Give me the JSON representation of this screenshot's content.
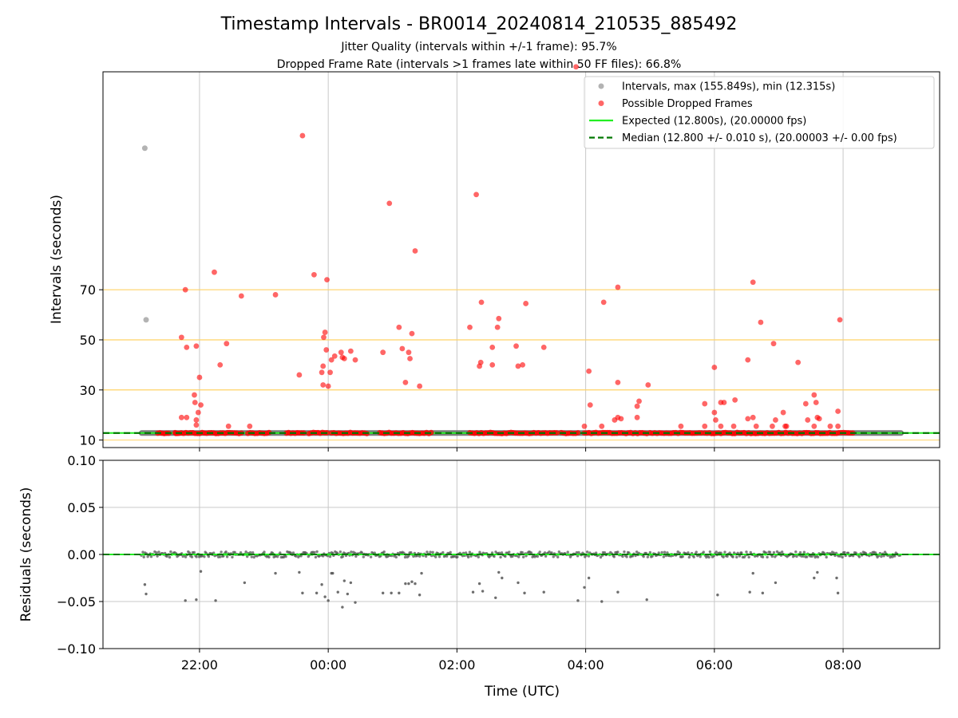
{
  "title": "Timestamp Intervals - BR0014_20240814_210535_885492",
  "subtitle_lines": [
    "Jitter Quality (intervals within +/-1 frame): 95.7%",
    "Dropped Frame Rate (intervals >1 frames late within 50 FF files): 66.8%"
  ],
  "colors": {
    "interval_points": "#808080",
    "dropped": "#ff0000",
    "expected": "#22ee22",
    "median": "#007700",
    "threshold": "#ffd266",
    "grid": "#c8c8c8",
    "residual_points": "#555555"
  },
  "chart_data": [
    {
      "type": "scatter",
      "id": "intervals",
      "ylabel": "Intervals (seconds)",
      "xlabel": "",
      "x_ticks": [
        "22:00",
        "00:00",
        "02:00",
        "04:00",
        "06:00",
        "08:00"
      ],
      "x_tick_hours": [
        22,
        24,
        26,
        28,
        30,
        32
      ],
      "xlim_hours": [
        20.5,
        33.5
      ],
      "ylim": [
        7,
        157
      ],
      "y_ticks": [
        10,
        30,
        50,
        70
      ],
      "threshold_lines": [
        30,
        50,
        70
      ],
      "expected_value": 12.8,
      "median_value": 12.8,
      "data_span_hours": [
        21.1,
        32.9
      ],
      "legend": {
        "placement": "top-right",
        "entries": [
          {
            "key": "intervals",
            "label": "Intervals, max (155.849s), min (12.315s)"
          },
          {
            "key": "dropped",
            "label": "Possible Dropped Frames"
          },
          {
            "key": "expected",
            "label": "Expected (12.800s), (20.00000 fps)"
          },
          {
            "key": "median",
            "label": "Median (12.800 +/- 0.010 s), (20.00003 +/- 0.00 fps)"
          }
        ]
      },
      "series": [
        {
          "name": "Intervals, max (155.849s), min (12.315s)",
          "points": [
            [
              21.15,
              126.5
            ],
            [
              21.17,
              58
            ]
          ]
        },
        {
          "name": "Possible Dropped Frames",
          "points": [
            [
              21.78,
              70
            ],
            [
              21.72,
              51
            ],
            [
              21.8,
              47
            ],
            [
              21.72,
              19
            ],
            [
              21.8,
              19
            ],
            [
              21.92,
              28
            ],
            [
              21.93,
              25
            ],
            [
              21.95,
              47.5
            ],
            [
              21.95,
              16
            ],
            [
              21.95,
              18
            ],
            [
              21.98,
              21
            ],
            [
              22.0,
              35
            ],
            [
              22.02,
              24
            ],
            [
              22.23,
              77
            ],
            [
              22.32,
              40
            ],
            [
              22.42,
              48.5
            ],
            [
              22.45,
              15.5
            ],
            [
              22.65,
              67.5
            ],
            [
              22.78,
              15.5
            ],
            [
              23.18,
              68
            ],
            [
              23.55,
              36
            ],
            [
              23.6,
              131.5
            ],
            [
              23.78,
              76
            ],
            [
              23.92,
              32
            ],
            [
              23.9,
              37
            ],
            [
              23.92,
              39.5
            ],
            [
              23.93,
              51
            ],
            [
              23.95,
              53
            ],
            [
              23.97,
              46
            ],
            [
              23.98,
              74
            ],
            [
              24.0,
              31.5
            ],
            [
              24.03,
              37
            ],
            [
              24.05,
              42
            ],
            [
              24.1,
              43.5
            ],
            [
              24.2,
              45
            ],
            [
              24.22,
              43
            ],
            [
              24.25,
              42.5
            ],
            [
              24.35,
              45.5
            ],
            [
              24.42,
              42
            ],
            [
              24.85,
              45
            ],
            [
              24.95,
              104.5
            ],
            [
              25.1,
              55
            ],
            [
              25.15,
              46.5
            ],
            [
              25.2,
              33
            ],
            [
              25.25,
              45
            ],
            [
              25.27,
              42.5
            ],
            [
              25.3,
              52.5
            ],
            [
              25.35,
              85.5
            ],
            [
              25.42,
              31.5
            ],
            [
              26.2,
              55
            ],
            [
              26.3,
              108
            ],
            [
              26.35,
              39.5
            ],
            [
              26.37,
              41
            ],
            [
              26.38,
              65
            ],
            [
              26.55,
              40
            ],
            [
              26.55,
              47
            ],
            [
              26.63,
              55
            ],
            [
              26.65,
              58.5
            ],
            [
              26.92,
              47.5
            ],
            [
              26.95,
              39.5
            ],
            [
              27.02,
              40
            ],
            [
              27.07,
              64.5
            ],
            [
              27.35,
              47
            ],
            [
              27.85,
              159
            ],
            [
              27.98,
              15.5
            ],
            [
              28.05,
              37.5
            ],
            [
              28.07,
              24
            ],
            [
              28.28,
              65
            ],
            [
              28.25,
              15.5
            ],
            [
              28.45,
              18
            ],
            [
              28.5,
              19
            ],
            [
              28.55,
              18.5
            ],
            [
              28.5,
              33
            ],
            [
              28.5,
              71
            ],
            [
              28.8,
              19
            ],
            [
              28.8,
              23.5
            ],
            [
              28.83,
              25.5
            ],
            [
              28.97,
              32
            ],
            [
              29.48,
              15.5
            ],
            [
              29.85,
              24.5
            ],
            [
              29.85,
              15.5
            ],
            [
              30.0,
              39
            ],
            [
              30.0,
              21
            ],
            [
              30.02,
              18
            ],
            [
              30.1,
              25
            ],
            [
              30.1,
              15.5
            ],
            [
              30.15,
              25
            ],
            [
              30.3,
              15.5
            ],
            [
              30.32,
              26
            ],
            [
              30.52,
              42
            ],
            [
              30.52,
              18.5
            ],
            [
              30.6,
              73
            ],
            [
              30.6,
              19
            ],
            [
              30.65,
              15.5
            ],
            [
              30.72,
              57
            ],
            [
              30.95,
              18
            ],
            [
              30.9,
              15.5
            ],
            [
              30.92,
              48.5
            ],
            [
              31.1,
              15.5
            ],
            [
              31.07,
              21
            ],
            [
              31.12,
              15.5
            ],
            [
              31.3,
              41
            ],
            [
              31.42,
              24.5
            ],
            [
              31.45,
              18
            ],
            [
              31.55,
              28
            ],
            [
              31.58,
              25
            ],
            [
              31.55,
              15.5
            ],
            [
              31.6,
              19
            ],
            [
              31.63,
              18.5
            ],
            [
              31.8,
              15.5
            ],
            [
              31.92,
              21.5
            ],
            [
              31.92,
              15.5
            ],
            [
              31.95,
              58
            ]
          ],
          "dense_ranges_hours": [
            [
              21.35,
              21.52
            ],
            [
              21.62,
              21.66
            ],
            [
              21.68,
              22.65
            ],
            [
              22.75,
              23.08
            ],
            [
              23.35,
              23.62
            ],
            [
              23.7,
              23.98
            ],
            [
              24.05,
              24.6
            ],
            [
              24.8,
              25.6
            ],
            [
              26.2,
              27.55
            ],
            [
              27.62,
              27.88
            ],
            [
              27.98,
              28.95
            ],
            [
              29.0,
              29.8
            ],
            [
              29.85,
              32.15
            ]
          ]
        }
      ]
    },
    {
      "type": "scatter",
      "id": "residuals",
      "ylabel": "Residuals (seconds)",
      "xlabel": "Time (UTC)",
      "x_ticks": [
        "22:00",
        "00:00",
        "02:00",
        "04:00",
        "06:00",
        "08:00"
      ],
      "x_tick_hours": [
        22,
        24,
        26,
        28,
        30,
        32
      ],
      "xlim_hours": [
        20.5,
        33.5
      ],
      "ylim": [
        -0.1,
        0.1
      ],
      "y_ticks": [
        "0.10",
        "0.05",
        "0.00",
        "−0.05",
        "−0.10"
      ],
      "y_tick_values": [
        0.1,
        0.05,
        0.0,
        -0.05,
        -0.1
      ],
      "series": [
        {
          "name": "Residuals",
          "points": [
            [
              21.15,
              -0.032
            ],
            [
              21.17,
              -0.042
            ],
            [
              21.78,
              -0.049
            ],
            [
              21.95,
              -0.048
            ],
            [
              22.02,
              -0.018
            ],
            [
              22.25,
              -0.049
            ],
            [
              22.7,
              -0.03
            ],
            [
              23.18,
              -0.02
            ],
            [
              23.55,
              -0.019
            ],
            [
              23.6,
              -0.041
            ],
            [
              23.82,
              -0.041
            ],
            [
              23.9,
              -0.032
            ],
            [
              23.95,
              -0.045
            ],
            [
              24.0,
              -0.049
            ],
            [
              24.05,
              -0.02
            ],
            [
              24.07,
              -0.02
            ],
            [
              24.15,
              -0.04
            ],
            [
              24.22,
              -0.056
            ],
            [
              24.25,
              -0.028
            ],
            [
              24.3,
              -0.042
            ],
            [
              24.35,
              -0.03
            ],
            [
              24.42,
              -0.051
            ],
            [
              24.85,
              -0.041
            ],
            [
              24.98,
              -0.041
            ],
            [
              25.1,
              -0.041
            ],
            [
              25.2,
              -0.031
            ],
            [
              25.25,
              -0.031
            ],
            [
              25.3,
              -0.029
            ],
            [
              25.35,
              -0.031
            ],
            [
              25.45,
              -0.02
            ],
            [
              25.42,
              -0.043
            ],
            [
              26.25,
              -0.04
            ],
            [
              26.35,
              -0.031
            ],
            [
              26.4,
              -0.039
            ],
            [
              26.6,
              -0.046
            ],
            [
              26.65,
              -0.019
            ],
            [
              26.7,
              -0.025
            ],
            [
              26.95,
              -0.03
            ],
            [
              27.05,
              -0.041
            ],
            [
              27.35,
              -0.04
            ],
            [
              27.88,
              -0.049
            ],
            [
              27.98,
              -0.035
            ],
            [
              28.05,
              -0.025
            ],
            [
              28.25,
              -0.05
            ],
            [
              28.5,
              -0.04
            ],
            [
              28.95,
              -0.048
            ],
            [
              30.05,
              -0.043
            ],
            [
              30.55,
              -0.04
            ],
            [
              30.6,
              -0.02
            ],
            [
              30.75,
              -0.041
            ],
            [
              30.95,
              -0.03
            ],
            [
              31.55,
              -0.025
            ],
            [
              31.6,
              -0.019
            ],
            [
              31.9,
              -0.025
            ],
            [
              31.92,
              -0.041
            ]
          ],
          "band_range_hours": [
            21.1,
            32.9
          ],
          "band_spread": 0.003
        }
      ]
    }
  ]
}
